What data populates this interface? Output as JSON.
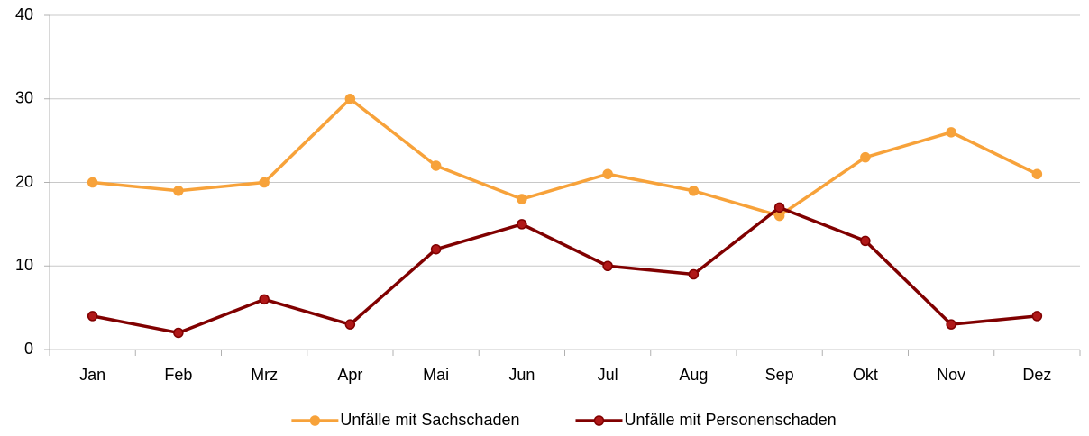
{
  "chart_data": {
    "type": "line",
    "categories": [
      "Jan",
      "Feb",
      "Mrz",
      "Apr",
      "Mai",
      "Jun",
      "Jul",
      "Aug",
      "Sep",
      "Okt",
      "Nov",
      "Dez"
    ],
    "series": [
      {
        "name": "Unfälle mit Sachschaden",
        "color": "#f7a23a",
        "values": [
          20,
          19,
          20,
          30,
          22,
          18,
          21,
          19,
          16,
          23,
          26,
          21
        ]
      },
      {
        "name": "Unfälle mit Personenschaden",
        "color": "#800000",
        "values": [
          4,
          2,
          6,
          3,
          12,
          15,
          10,
          9,
          17,
          13,
          3,
          4
        ]
      }
    ],
    "ylim": [
      0,
      40
    ],
    "yticks": [
      0,
      10,
      20,
      30,
      40
    ],
    "grid": true,
    "legend": "bottom"
  }
}
